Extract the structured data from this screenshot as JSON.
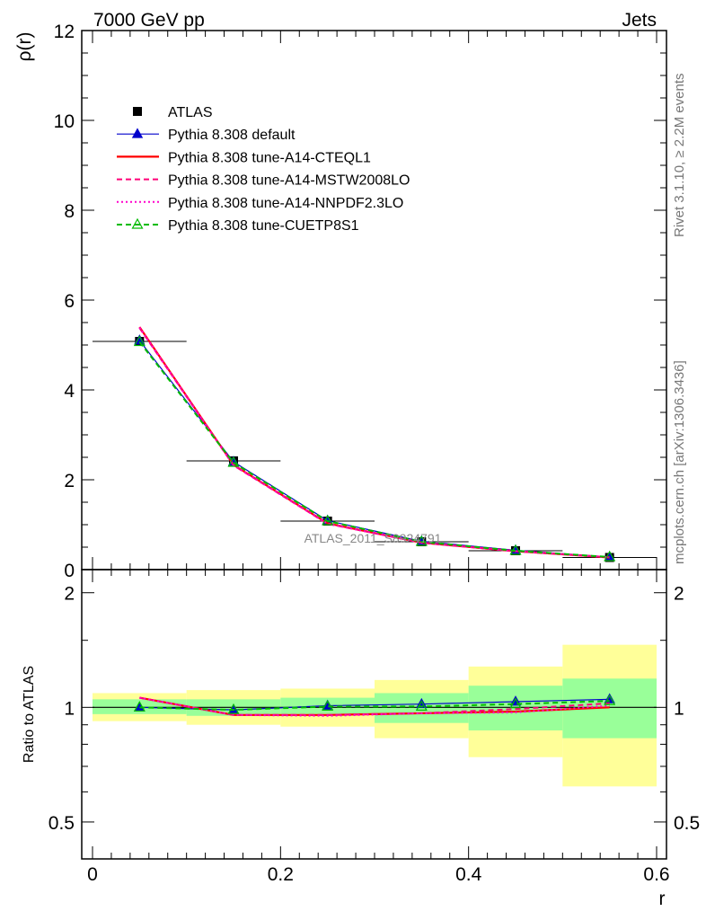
{
  "header": {
    "left": "7000 GeV pp",
    "right": "Jets"
  },
  "side_text": {
    "rivet": "Rivet 3.1.10, ≥ 2.2M events",
    "mcplots": "mcplots.cern.ch [arXiv:1306.3436]"
  },
  "watermark": "ATLAS_2011_S8924791",
  "chart_data": [
    {
      "type": "line",
      "panel": "main",
      "ylabel": "ρ(r)",
      "xlim": [
        -0.015,
        0.6
      ],
      "ylim": [
        0,
        12
      ],
      "yticks": [
        0,
        2,
        4,
        6,
        8,
        10,
        12
      ],
      "ytick_labels": [
        "0",
        "2",
        "4",
        "6",
        "8",
        "10",
        "12"
      ],
      "x": [
        0.05,
        0.15,
        0.25,
        0.35,
        0.45,
        0.55
      ],
      "series": [
        {
          "name": "ATLAS",
          "color": "#000000",
          "style": "data-square",
          "values": [
            5.08,
            2.42,
            1.08,
            0.62,
            0.42,
            0.27
          ]
        },
        {
          "name": "Pythia 8.308 default",
          "color": "#0000cc",
          "style": "solid-thin-triangle",
          "values": [
            5.1,
            2.4,
            1.09,
            0.63,
            0.43,
            0.28
          ]
        },
        {
          "name": "Pythia 8.308 tune-A14-CTEQL1",
          "color": "#ff0000",
          "style": "solid",
          "values": [
            5.4,
            2.33,
            1.03,
            0.6,
            0.41,
            0.27
          ]
        },
        {
          "name": "Pythia 8.308 tune-A14-MSTW2008LO",
          "color": "#ff0077",
          "style": "dashed",
          "values": [
            5.38,
            2.32,
            1.02,
            0.6,
            0.41,
            0.275
          ]
        },
        {
          "name": "Pythia 8.308 tune-A14-NNPDF2.3LO",
          "color": "#ff00cc",
          "style": "dotted",
          "values": [
            5.39,
            2.32,
            1.02,
            0.6,
            0.41,
            0.272
          ]
        },
        {
          "name": "Pythia 8.308 tune-CUETP8S1",
          "color": "#00bb00",
          "style": "dashed-open-triangle",
          "values": [
            5.07,
            2.38,
            1.08,
            0.62,
            0.42,
            0.28
          ]
        }
      ],
      "legend_position": "upper-left"
    },
    {
      "type": "line",
      "panel": "ratio",
      "ylabel": "Ratio to ATLAS",
      "xlabel": "r",
      "scale": "log",
      "xlim": [
        -0.015,
        0.6
      ],
      "ylim": [
        0.4,
        2.3
      ],
      "yticks": [
        0.5,
        1,
        2
      ],
      "ytick_labels": [
        "0.5",
        "1",
        "2"
      ],
      "xticks": [
        0,
        0.2,
        0.4,
        0.6
      ],
      "xtick_labels": [
        "0",
        "0.2",
        "0.4",
        "0.6"
      ],
      "bins": [
        [
          0,
          0.1
        ],
        [
          0.1,
          0.2
        ],
        [
          0.2,
          0.3
        ],
        [
          0.3,
          0.4
        ],
        [
          0.4,
          0.5
        ],
        [
          0.5,
          0.6
        ]
      ],
      "band_yellow": [
        [
          0.92,
          1.09
        ],
        [
          0.9,
          1.11
        ],
        [
          0.89,
          1.12
        ],
        [
          0.83,
          1.18
        ],
        [
          0.74,
          1.28
        ],
        [
          0.62,
          1.46
        ]
      ],
      "band_green": [
        [
          0.96,
          1.05
        ],
        [
          0.95,
          1.05
        ],
        [
          0.96,
          1.06
        ],
        [
          0.91,
          1.09
        ],
        [
          0.87,
          1.14
        ],
        [
          0.83,
          1.19
        ]
      ],
      "x": [
        0.05,
        0.15,
        0.25,
        0.35,
        0.45,
        0.55
      ],
      "series": [
        {
          "name": "Pythia 8.308 default",
          "color": "#0000cc",
          "style": "solid-thin-triangle",
          "values": [
            1.0,
            0.985,
            1.01,
            1.02,
            1.035,
            1.05
          ]
        },
        {
          "name": "Pythia 8.308 tune-A14-CTEQL1",
          "color": "#ff0000",
          "style": "solid",
          "values": [
            1.06,
            0.955,
            0.955,
            0.965,
            0.975,
            1.0
          ]
        },
        {
          "name": "Pythia 8.308 tune-A14-MSTW2008LO",
          "color": "#ff0077",
          "style": "dashed",
          "values": [
            1.06,
            0.955,
            0.955,
            0.965,
            0.99,
            1.025
          ]
        },
        {
          "name": "Pythia 8.308 tune-A14-NNPDF2.3LO",
          "color": "#ff00cc",
          "style": "dotted",
          "values": [
            1.06,
            0.955,
            0.95,
            0.965,
            0.97,
            1.01
          ]
        },
        {
          "name": "Pythia 8.308 tune-CUETP8S1",
          "color": "#00bb00",
          "style": "dashed-open-triangle",
          "values": [
            1.0,
            0.985,
            1.005,
            1.005,
            1.02,
            1.04
          ]
        }
      ]
    }
  ]
}
